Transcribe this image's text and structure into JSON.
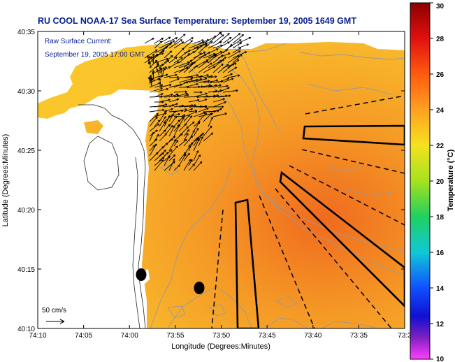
{
  "chart_data": {
    "type": "heatmap",
    "title": "RU COOL  NOAA-17  Sea Surface Temperature:  September 19, 2005 1649 GMT",
    "annotation": {
      "line1": "Raw Surface Current:",
      "line2": "September 19, 2005 17:00 GMT"
    },
    "xlabel": "Longitude (Degrees:Minutes)",
    "ylabel": "Latitude (Degrees:Minutes)",
    "x_ticks": [
      "74:10",
      "74:05",
      "74:00",
      "73:55",
      "73:50",
      "73:45",
      "73:40",
      "73:35",
      "73:3"
    ],
    "y_ticks": [
      "40:35",
      "40:30",
      "40:25",
      "40:20",
      "40:15",
      "40:10"
    ],
    "xlim_minutes_west": [
      10,
      30
    ],
    "ylim_minutes_north": [
      10,
      35
    ],
    "colorbar": {
      "label": "Temperature (°C)",
      "min": 10,
      "max": 30,
      "ticks": [
        "30",
        "28",
        "26",
        "24",
        "22",
        "20",
        "18",
        "16",
        "14",
        "12",
        "10"
      ]
    },
    "scale_label": "50 cm/s",
    "sst_range_shown_c": [
      23,
      26
    ],
    "colors": {
      "title": "#0a1f8f",
      "annotation": "#0a1f8f",
      "land": "#ffffff",
      "contour": "#9a9a9a"
    }
  }
}
